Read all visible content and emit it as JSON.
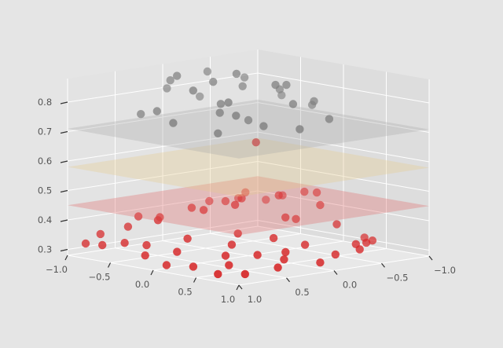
{
  "chart_data": {
    "type": "scatter",
    "projection": "3d",
    "title": "",
    "xlabel": "",
    "ylabel": "",
    "zlabel": "",
    "xlim": [
      -1.0,
      1.0
    ],
    "ylim": [
      -1.0,
      1.0
    ],
    "zlim": [
      0.28,
      0.88
    ],
    "grid": true,
    "x_ticks": [
      "−1.0",
      "−0.5",
      "0.0",
      "0.5",
      "1.0"
    ],
    "y_ticks": [
      "−1.0",
      "−0.5",
      "0.0",
      "0.5",
      "1.0"
    ],
    "z_ticks": [
      "0.3",
      "0.4",
      "0.5",
      "0.6",
      "0.7",
      "0.8"
    ],
    "planes": [
      {
        "z": 0.45,
        "color": "#e06666"
      },
      {
        "z": 0.58,
        "color": "#e6c98a"
      },
      {
        "z": 0.71,
        "color": "#a8a8a8"
      }
    ],
    "colors": {
      "low": "#d62728",
      "high": "#7f7f7f"
    },
    "threshold": 0.71,
    "points": [
      {
        "x": 0.85,
        "y": 0.8,
        "z": 0.3
      },
      {
        "x": 0.9,
        "y": 0.5,
        "z": 0.31
      },
      {
        "x": 0.7,
        "y": 0.95,
        "z": 0.3
      },
      {
        "x": 0.55,
        "y": 0.7,
        "z": 0.31
      },
      {
        "x": 0.3,
        "y": 0.85,
        "z": 0.3
      },
      {
        "x": 0.1,
        "y": 0.95,
        "z": 0.3
      },
      {
        "x": 0.95,
        "y": 0.1,
        "z": 0.31
      },
      {
        "x": 0.75,
        "y": 0.3,
        "z": 0.32
      },
      {
        "x": 0.85,
        "y": -0.15,
        "z": 0.32
      },
      {
        "x": 0.55,
        "y": 0.4,
        "z": 0.33
      },
      {
        "x": 0.4,
        "y": 0.6,
        "z": 0.33
      },
      {
        "x": 0.8,
        "y": -0.45,
        "z": 0.32
      },
      {
        "x": 0.6,
        "y": -0.7,
        "z": 0.32
      },
      {
        "x": 0.45,
        "y": -0.9,
        "z": 0.31
      },
      {
        "x": 0.3,
        "y": -0.95,
        "z": 0.31
      },
      {
        "x": 0.7,
        "y": -0.5,
        "z": 0.33
      },
      {
        "x": 0.55,
        "y": -0.1,
        "z": 0.34
      },
      {
        "x": 0.6,
        "y": 0.15,
        "z": 0.33
      },
      {
        "x": 0.25,
        "y": 0.4,
        "z": 0.35
      },
      {
        "x": 0.1,
        "y": 0.2,
        "z": 0.37
      },
      {
        "x": -0.1,
        "y": 0.55,
        "z": 0.36
      },
      {
        "x": -0.3,
        "y": 0.8,
        "z": 0.34
      },
      {
        "x": -0.5,
        "y": 0.85,
        "z": 0.34
      },
      {
        "x": -0.65,
        "y": 0.95,
        "z": 0.33
      },
      {
        "x": -0.15,
        "y": 0.95,
        "z": 0.32
      },
      {
        "x": 0.0,
        "y": 0.75,
        "z": 0.33
      },
      {
        "x": -0.9,
        "y": 0.9,
        "z": 0.32
      },
      {
        "x": -0.95,
        "y": 0.7,
        "z": 0.34
      },
      {
        "x": -0.85,
        "y": 0.5,
        "z": 0.36
      },
      {
        "x": -0.7,
        "y": 0.3,
        "z": 0.39
      },
      {
        "x": -0.95,
        "y": 0.3,
        "z": 0.38
      },
      {
        "x": -0.55,
        "y": 0.1,
        "z": 0.42
      },
      {
        "x": -0.3,
        "y": -0.2,
        "z": 0.45
      },
      {
        "x": -0.1,
        "y": 0.05,
        "z": 0.45
      },
      {
        "x": -0.2,
        "y": -0.5,
        "z": 0.45
      },
      {
        "x": -0.05,
        "y": -0.8,
        "z": 0.41
      },
      {
        "x": -0.2,
        "y": -0.9,
        "z": 0.44
      },
      {
        "x": -0.4,
        "y": -0.95,
        "z": 0.43
      },
      {
        "x": -0.6,
        "y": -0.9,
        "z": 0.41
      },
      {
        "x": -0.85,
        "y": -0.95,
        "z": 0.38
      },
      {
        "x": -0.95,
        "y": -0.75,
        "z": 0.39
      },
      {
        "x": -0.7,
        "y": -0.6,
        "z": 0.43
      },
      {
        "x": 0.0,
        "y": -0.5,
        "z": 0.38
      },
      {
        "x": 0.2,
        "y": -0.75,
        "z": 0.36
      },
      {
        "x": 0.1,
        "y": -0.3,
        "z": 0.4
      },
      {
        "x": -0.9,
        "y": -0.4,
        "z": 0.4
      },
      {
        "x": -0.5,
        "y": 0.5,
        "z": 0.4
      },
      {
        "x": -0.3,
        "y": 0.2,
        "z": 0.43
      },
      {
        "x": -0.6,
        "y": -0.3,
        "z": 0.42
      },
      {
        "x": 0.35,
        "y": 0.05,
        "z": 0.36
      },
      {
        "x": 0.2,
        "y": 0.1,
        "z": 0.68
      },
      {
        "x": 0.0,
        "y": 0.0,
        "z": 0.74
      },
      {
        "x": -0.1,
        "y": 0.2,
        "z": 0.8
      },
      {
        "x": 0.1,
        "y": 0.3,
        "z": 0.82
      },
      {
        "x": -0.3,
        "y": 0.1,
        "z": 0.86
      },
      {
        "x": -0.2,
        "y": 0.4,
        "z": 0.85
      },
      {
        "x": 0.3,
        "y": -0.2,
        "z": 0.8
      },
      {
        "x": -0.4,
        "y": -0.3,
        "z": 0.82
      },
      {
        "x": -0.5,
        "y": 0.3,
        "z": 0.88
      },
      {
        "x": 0.0,
        "y": -0.4,
        "z": 0.84
      },
      {
        "x": -0.6,
        "y": -0.5,
        "z": 0.83
      },
      {
        "x": -0.7,
        "y": -0.2,
        "z": 0.86
      },
      {
        "x": -0.3,
        "y": -0.6,
        "z": 0.8
      },
      {
        "x": 0.4,
        "y": 0.2,
        "z": 0.75
      },
      {
        "x": 0.1,
        "y": -0.6,
        "z": 0.78
      },
      {
        "x": -0.8,
        "y": 0.1,
        "z": 0.84
      },
      {
        "x": -0.9,
        "y": -0.3,
        "z": 0.76
      },
      {
        "x": -0.5,
        "y": -0.8,
        "z": 0.76
      },
      {
        "x": -0.2,
        "y": -0.85,
        "z": 0.74
      },
      {
        "x": 0.5,
        "y": -0.4,
        "z": 0.75
      },
      {
        "x": 0.2,
        "y": 0.5,
        "z": 0.73
      },
      {
        "x": -0.4,
        "y": 0.6,
        "z": 0.78
      },
      {
        "x": -0.7,
        "y": 0.5,
        "z": 0.75
      },
      {
        "x": 0.3,
        "y": 0.4,
        "z": 0.79
      },
      {
        "x": -0.1,
        "y": 0.7,
        "z": 0.76
      },
      {
        "x": 0.6,
        "y": 0.0,
        "z": 0.74
      },
      {
        "x": -0.95,
        "y": 0.0,
        "z": 0.8
      },
      {
        "x": 0.0,
        "y": 0.3,
        "z": 0.78
      },
      {
        "x": -0.25,
        "y": -0.1,
        "z": 0.88
      },
      {
        "x": 0.15,
        "y": -0.15,
        "z": 0.86
      }
    ]
  }
}
